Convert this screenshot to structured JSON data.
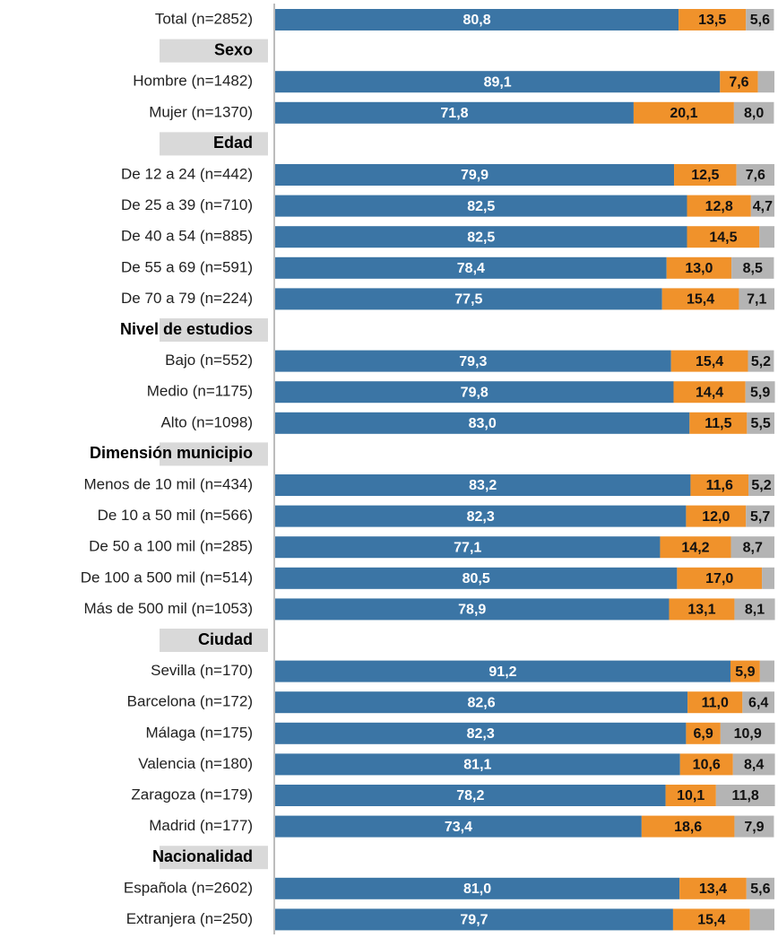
{
  "chart_data": {
    "type": "stacked-bar-horizontal",
    "categories": [
      "Total (n=2852)",
      "Sexo",
      "Hombre (n=1482)",
      "Mujer (n=1370)",
      "Edad",
      "De 12 a 24 (n=442)",
      "De 25 a 39 (n=710)",
      "De 40 a 54 (n=885)",
      "De 55 a 69 (n=591)",
      "De 70 a 79 (n=224)",
      "Nivel de estudios",
      "Bajo (n=552)",
      "Medio (n=1175)",
      "Alto (n=1098)",
      "Dimensión municipio",
      "Menos de 10 mil (n=434)",
      "De 10 a 50 mil (n=566)",
      "De 50 a 100 mil (n=285)",
      "De 100 a 500 mil (n=514)",
      "Más de 500 mil (n=1053)",
      "Ciudad",
      "Sevilla (n=170)",
      "Barcelona (n=172)",
      "Málaga (n=175)",
      "Valencia (n=180)",
      "Zaragoza (n=179)",
      "Madrid (n=177)",
      "Nacionalidad",
      "Española (n=2602)",
      "Extranjera (n=250)"
    ],
    "series": [
      {
        "color": "#3b75a5",
        "values": [
          80.8,
          null,
          89.1,
          71.8,
          null,
          79.9,
          82.5,
          82.5,
          78.4,
          77.5,
          null,
          79.3,
          79.8,
          83.0,
          null,
          83.2,
          82.3,
          77.1,
          80.5,
          78.9,
          null,
          91.2,
          82.6,
          82.3,
          81.1,
          78.2,
          73.4,
          null,
          81.0,
          79.7
        ],
        "value_labels": [
          "80,8",
          null,
          "89,1",
          "71,8",
          null,
          "79,9",
          "82,5",
          "82,5",
          "78,4",
          "77,5",
          null,
          "79,3",
          "79,8",
          "83,0",
          null,
          "83,2",
          "82,3",
          "77,1",
          "80,5",
          "78,9",
          null,
          "91,2",
          "82,6",
          "82,3",
          "81,1",
          "78,2",
          "73,4",
          null,
          "81,0",
          "79,7"
        ]
      },
      {
        "color": "#f0922b",
        "values": [
          13.5,
          null,
          7.6,
          20.1,
          null,
          12.5,
          12.8,
          14.5,
          13.0,
          15.4,
          null,
          15.4,
          14.4,
          11.5,
          null,
          11.6,
          12.0,
          14.2,
          17.0,
          13.1,
          null,
          5.9,
          11.0,
          6.9,
          10.6,
          10.1,
          18.6,
          null,
          13.4,
          15.4
        ],
        "value_labels": [
          "13,5",
          null,
          "7,6",
          "20,1",
          null,
          "12,5",
          "12,8",
          "14,5",
          "13,0",
          "15,4",
          null,
          "15,4",
          "14,4",
          "11,5",
          null,
          "11,6",
          "12,0",
          "14,2",
          "17,0",
          "13,1",
          null,
          "5,9",
          "11,0",
          "6,9",
          "10,6",
          "10,1",
          "18,6",
          null,
          "13,4",
          "15,4"
        ]
      },
      {
        "color": "#b4b4b4",
        "values": [
          5.6,
          null,
          3.3,
          8.0,
          null,
          7.6,
          4.7,
          3.0,
          8.5,
          7.1,
          null,
          5.2,
          5.9,
          5.5,
          null,
          5.2,
          5.7,
          8.7,
          2.5,
          8.1,
          null,
          2.9,
          6.4,
          10.9,
          8.4,
          11.8,
          7.9,
          null,
          5.6,
          4.9
        ],
        "value_labels": [
          "5,6",
          null,
          null,
          "8,0",
          null,
          "7,6",
          "4,7",
          null,
          "8,5",
          "7,1",
          null,
          "5,2",
          "5,9",
          "5,5",
          null,
          "5,2",
          "5,7",
          "8,7",
          null,
          "8,1",
          null,
          null,
          "6,4",
          "10,9",
          "8,4",
          "11,8",
          "7,9",
          null,
          "5,6",
          null
        ]
      }
    ],
    "xlim": [
      0,
      100
    ]
  }
}
